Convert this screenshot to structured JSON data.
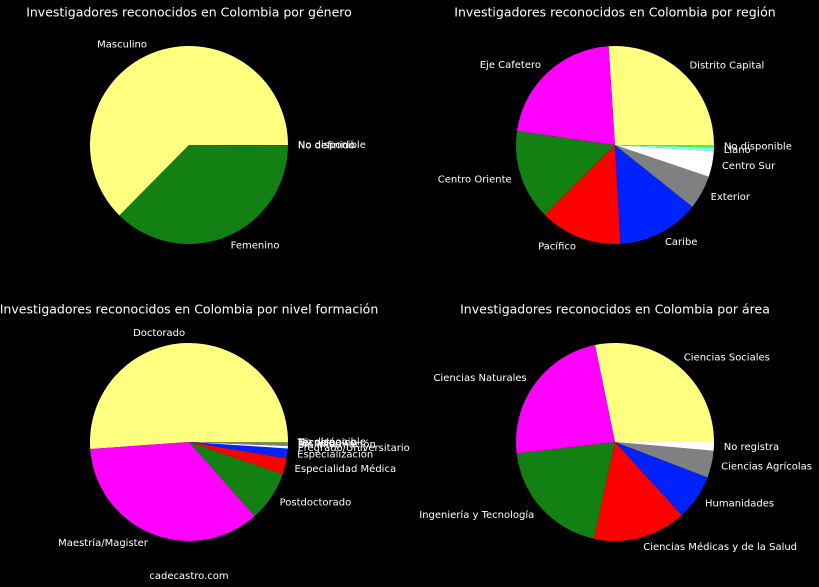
{
  "chart_data": [
    {
      "type": "pie",
      "title": "Investigadores reconocidos en Colombia por género",
      "categories": [
        "Masculino",
        "Femenino",
        "No definido",
        "No disponible"
      ],
      "values": [
        62.6,
        37.3,
        0.05,
        0.05
      ],
      "colors": [
        "#ffff80",
        "#138013",
        "#ff00ff",
        "#ff0000"
      ]
    },
    {
      "type": "pie",
      "title": "Investigadores reconocidos en Colombia por región",
      "categories": [
        "Distrito Capital",
        "Eje Cafetero",
        "Centro Oriente",
        "Pacífico",
        "Caribe",
        "Exterior",
        "Centro Sur",
        "Llano",
        "No disponible"
      ],
      "values": [
        26,
        21.7,
        14.7,
        13.4,
        13.4,
        5.5,
        4.2,
        0.6,
        0.4
      ],
      "colors": [
        "#ffff80",
        "#ff00ff",
        "#138013",
        "#ff0000",
        "#0022ff",
        "#808080",
        "#ffffff",
        "#80ffff",
        "#40ff40"
      ]
    },
    {
      "type": "pie",
      "title": "Investigadores reconocidos en Colombia por nivel formación",
      "categories": [
        "Doctorado",
        "Maestría/Magister",
        "Postdoctorado",
        "Especialidad Médica",
        "Especialización",
        "Pregrado/Universitario",
        "Sin información",
        "Técnico",
        "Tecnológico",
        "No disponible"
      ],
      "values": [
        51.1,
        35.4,
        8.2,
        2.6,
        1.6,
        0.4,
        0.5,
        0.05,
        0.05,
        0.05
      ],
      "colors": [
        "#ffff80",
        "#ff00ff",
        "#138013",
        "#ff0000",
        "#0022ff",
        "#ffffff",
        "#808080",
        "#80ffff",
        "#40ff40",
        "#ffa500"
      ]
    },
    {
      "type": "pie",
      "title": "Investigadores reconocidos en Colombia por área",
      "categories": [
        "Ciencias Sociales",
        "Ciencias Naturales",
        "Ingeniería y Tecnología",
        "Ciencias Médicas y de la Salud",
        "Humanidades",
        "Ciencias Agrícolas",
        "No registra"
      ],
      "values": [
        28.2,
        23.6,
        19.7,
        15.2,
        7.4,
        4.4,
        1.4
      ],
      "colors": [
        "#ffff80",
        "#ff00ff",
        "#138013",
        "#ff0000",
        "#0022ff",
        "#808080",
        "#ffffff"
      ]
    }
  ],
  "footer": "cadecastro.com"
}
